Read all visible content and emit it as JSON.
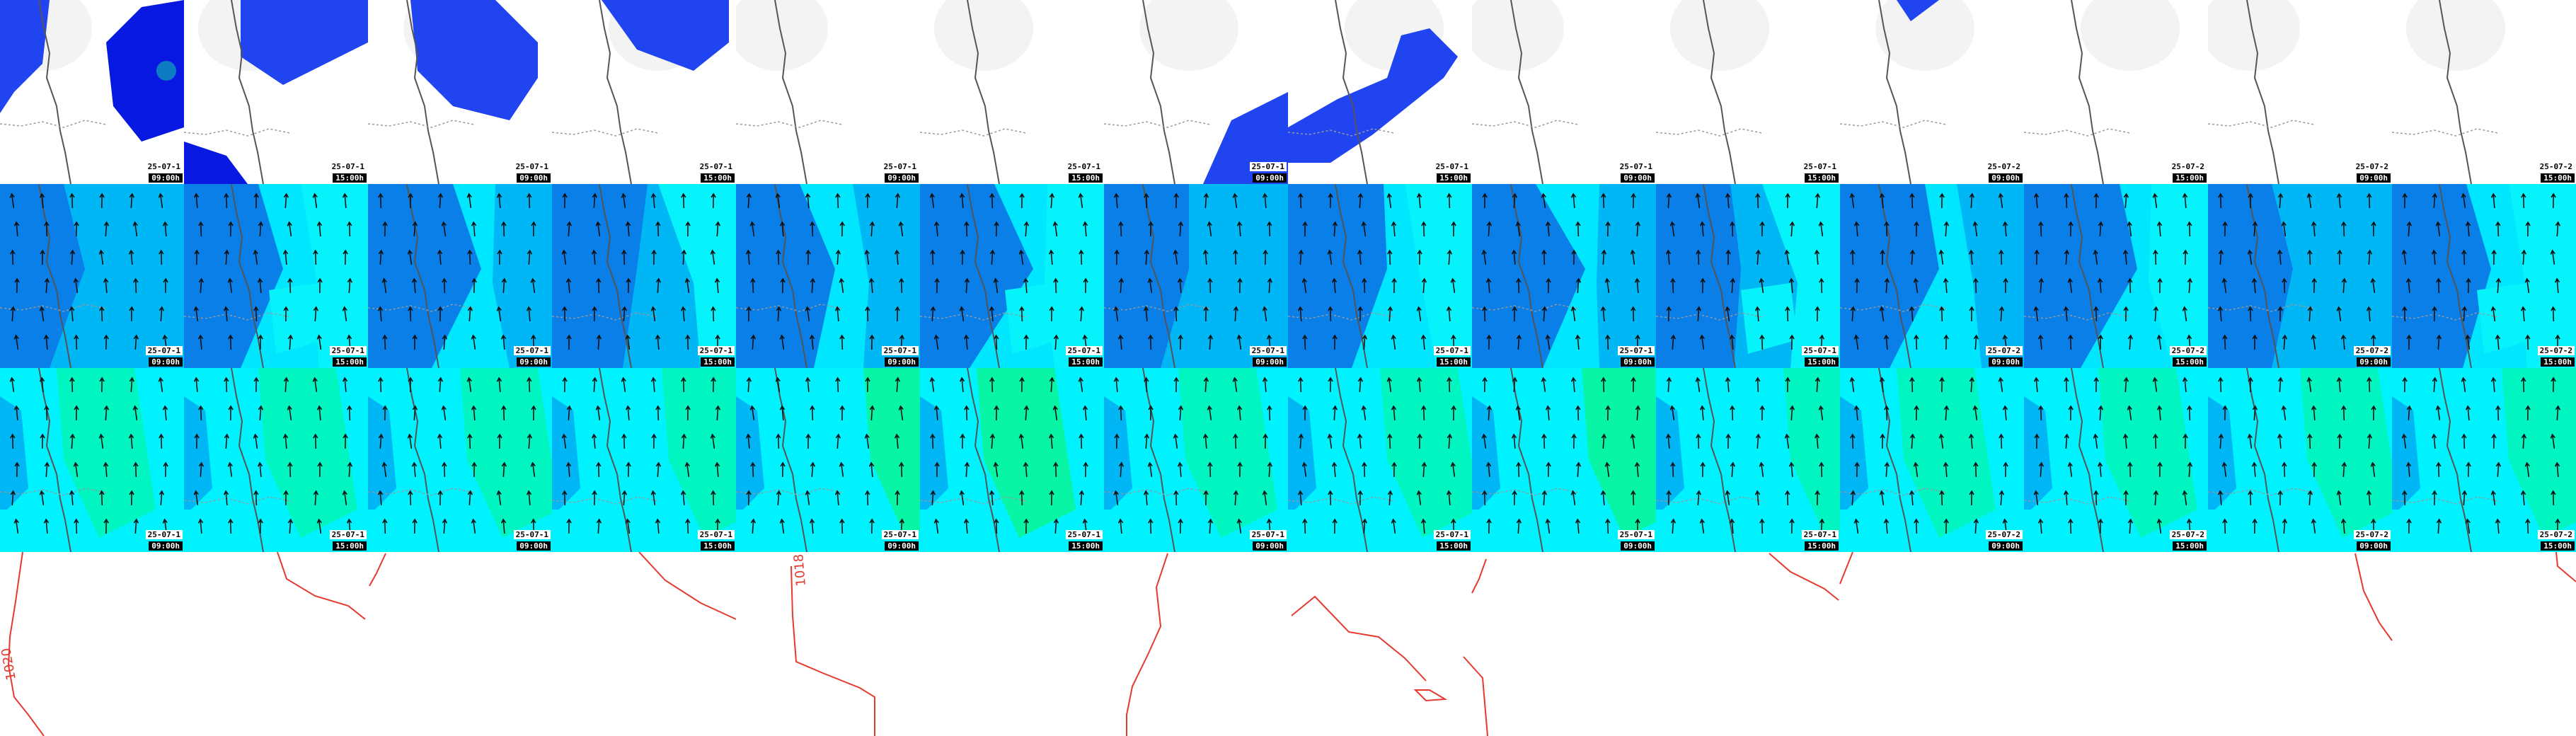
{
  "legend": {
    "wind_arrow": "wind-arrow-icon",
    "coastline": "coastline",
    "border": "border"
  },
  "palette": {
    "precip_light": "#1f44f0",
    "precip_heavy": "#0718e0",
    "precip_core": "#11a6b8",
    "wind_deep": "#0a7fe8",
    "wind_mid": "#00b6f5",
    "wind_light": "#00e6ff",
    "wind_pale": "#06f3fb",
    "temp_cyan": "#00f2ff",
    "temp_mint": "#00f5b9",
    "temp_green": "#08f59b",
    "isobar": "#e53a2f",
    "coast": "#555555"
  },
  "rows": [
    {
      "field": "precipitation",
      "tiles": [
        {
          "date": "25-07-1",
          "time": "09:00h"
        },
        {
          "date": "25-07-1",
          "time": "15:00h"
        },
        {
          "date": "25-07-1",
          "time": "09:00h"
        },
        {
          "date": "25-07-1",
          "time": "15:00h"
        },
        {
          "date": "25-07-1",
          "time": "09:00h"
        },
        {
          "date": "25-07-1",
          "time": "15:00h"
        },
        {
          "date": "25-07-1",
          "time": "09:00h"
        },
        {
          "date": "25-07-1",
          "time": "15:00h"
        },
        {
          "date": "25-07-1",
          "time": "09:00h"
        },
        {
          "date": "25-07-1",
          "time": "15:00h"
        },
        {
          "date": "25-07-2",
          "time": "09:00h"
        },
        {
          "date": "25-07-2",
          "time": "15:00h"
        },
        {
          "date": "25-07-2",
          "time": "09:00h"
        },
        {
          "date": "25-07-2",
          "time": "15:00h"
        }
      ]
    },
    {
      "field": "wind",
      "tiles": [
        {
          "date": "25-07-1",
          "time": "09:00h"
        },
        {
          "date": "25-07-1",
          "time": "15:00h"
        },
        {
          "date": "25-07-1",
          "time": "09:00h"
        },
        {
          "date": "25-07-1",
          "time": "15:00h"
        },
        {
          "date": "25-07-1",
          "time": "09:00h"
        },
        {
          "date": "25-07-1",
          "time": "15:00h"
        },
        {
          "date": "25-07-1",
          "time": "09:00h"
        },
        {
          "date": "25-07-1",
          "time": "15:00h"
        },
        {
          "date": "25-07-1",
          "time": "09:00h"
        },
        {
          "date": "25-07-1",
          "time": "15:00h"
        },
        {
          "date": "25-07-2",
          "time": "09:00h"
        },
        {
          "date": "25-07-2",
          "time": "15:00h"
        },
        {
          "date": "25-07-2",
          "time": "09:00h"
        },
        {
          "date": "25-07-2",
          "time": "15:00h"
        }
      ]
    },
    {
      "field": "temperature",
      "tiles": [
        {
          "date": "25-07-1",
          "time": "09:00h"
        },
        {
          "date": "25-07-1",
          "time": "15:00h"
        },
        {
          "date": "25-07-1",
          "time": "09:00h"
        },
        {
          "date": "25-07-1",
          "time": "15:00h"
        },
        {
          "date": "25-07-1",
          "time": "09:00h"
        },
        {
          "date": "25-07-1",
          "time": "15:00h"
        },
        {
          "date": "25-07-1",
          "time": "09:00h"
        },
        {
          "date": "25-07-1",
          "time": "15:00h"
        },
        {
          "date": "25-07-1",
          "time": "09:00h"
        },
        {
          "date": "25-07-1",
          "time": "15:00h"
        },
        {
          "date": "25-07-2",
          "time": "09:00h"
        },
        {
          "date": "25-07-2",
          "time": "15:00h"
        },
        {
          "date": "25-07-2",
          "time": "09:00h"
        },
        {
          "date": "25-07-2",
          "time": "15:00h"
        }
      ]
    },
    {
      "field": "pressure",
      "isobar_labels": [
        "1020",
        "1018"
      ],
      "tiles": [
        {},
        {},
        {},
        {},
        {},
        {},
        {},
        {},
        {},
        {},
        {},
        {},
        {},
        {}
      ]
    }
  ]
}
